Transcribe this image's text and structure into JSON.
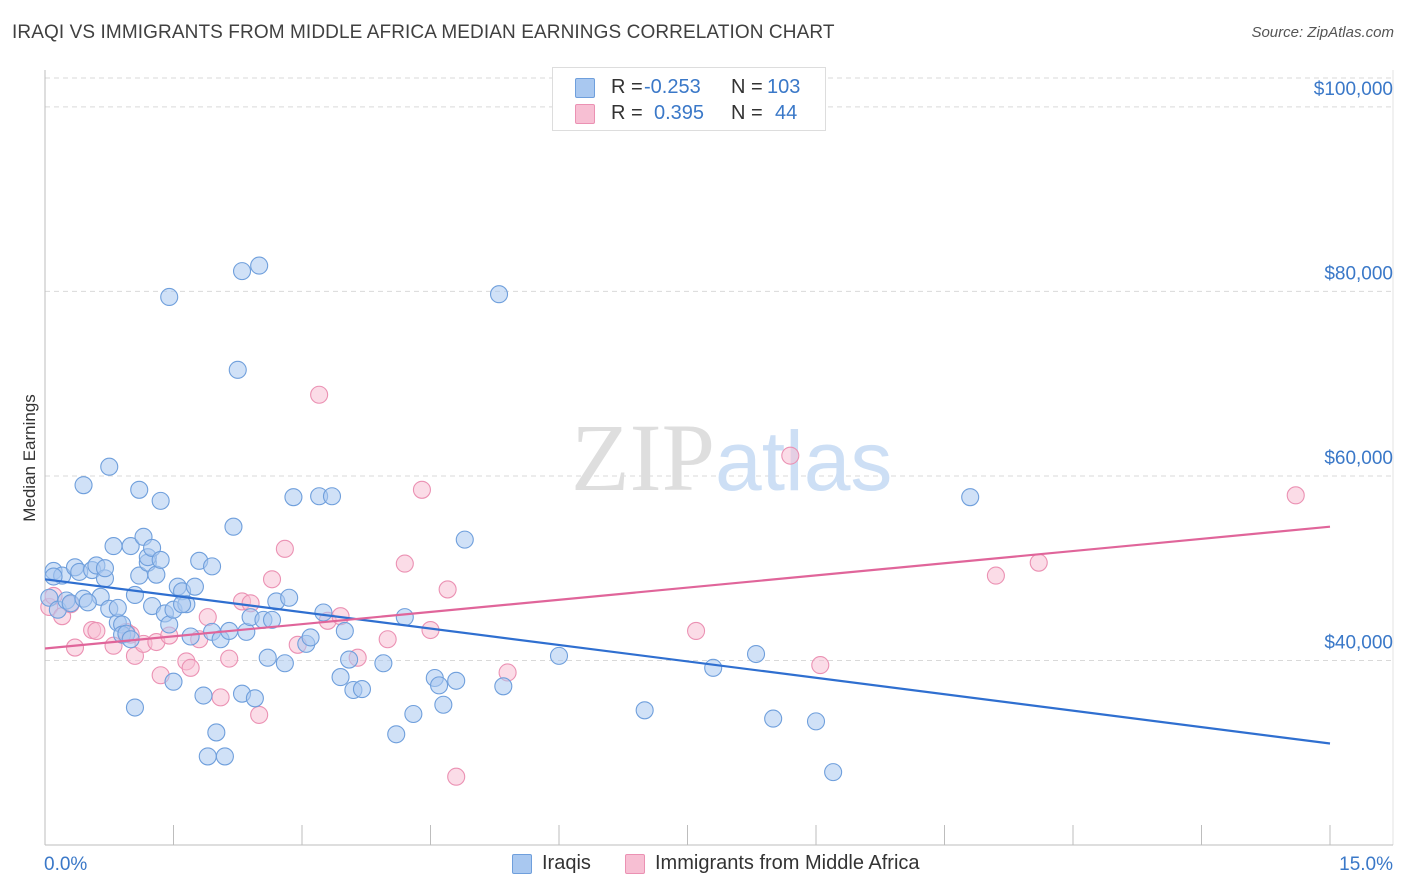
{
  "title": "IRAQI VS IMMIGRANTS FROM MIDDLE AFRICA MEDIAN EARNINGS CORRELATION CHART",
  "source": "Source: ZipAtlas.com",
  "watermark": {
    "zip": "ZIP",
    "atlas": "atlas"
  },
  "legend": {
    "series1": {
      "r_label": "R = ",
      "r_value": "-0.253",
      "n_label": "N = ",
      "n_value": "103"
    },
    "series2": {
      "r_label": "R = ",
      "r_value": "0.395",
      "n_label": "N = ",
      "n_value": "44"
    }
  },
  "bottom_legend": {
    "series1": "Iraqis",
    "series2": "Immigrants from Middle Africa"
  },
  "colors": {
    "blue_fill": "#a9c8f0",
    "blue_stroke": "#6f9fdc",
    "blue_line": "#2f6fd0",
    "pink_fill": "#f7bfd3",
    "pink_stroke": "#eb91b3",
    "pink_line": "#e0659a",
    "axis_text": "#3a78c8",
    "grid": "#d9d9d9"
  },
  "chart_data": {
    "type": "scatter",
    "title": "IRAQI VS IMMIGRANTS FROM MIDDLE AFRICA MEDIAN EARNINGS CORRELATION CHART",
    "xlabel": "",
    "ylabel": "Median Earnings",
    "xlim": [
      0,
      15
    ],
    "ylim": [
      20000,
      104000
    ],
    "x_tick_labels": [
      "0.0%",
      "15.0%"
    ],
    "y_ticks": [
      40000,
      60000,
      80000,
      100000
    ],
    "y_tick_labels": [
      "$40,000",
      "$60,000",
      "$80,000",
      "$100,000"
    ],
    "series": [
      {
        "name": "Iraqis",
        "color": "blue",
        "trend": {
          "x": [
            0,
            15
          ],
          "y": [
            48800,
            31000
          ]
        },
        "points": [
          [
            0.05,
            46800
          ],
          [
            0.1,
            49700
          ],
          [
            0.15,
            45500
          ],
          [
            0.2,
            49200
          ],
          [
            0.25,
            46500
          ],
          [
            0.3,
            46200
          ],
          [
            0.35,
            50100
          ],
          [
            0.4,
            49600
          ],
          [
            0.45,
            46700
          ],
          [
            0.45,
            59000
          ],
          [
            0.55,
            49800
          ],
          [
            0.6,
            50300
          ],
          [
            0.65,
            46900
          ],
          [
            0.7,
            48900
          ],
          [
            0.7,
            50000
          ],
          [
            0.75,
            45600
          ],
          [
            0.75,
            61000
          ],
          [
            0.8,
            52400
          ],
          [
            0.85,
            44100
          ],
          [
            0.85,
            45700
          ],
          [
            0.9,
            43900
          ],
          [
            0.9,
            42800
          ],
          [
            0.95,
            42900
          ],
          [
            1.0,
            52400
          ],
          [
            1.0,
            42300
          ],
          [
            1.05,
            34900
          ],
          [
            1.05,
            47100
          ],
          [
            1.1,
            49200
          ],
          [
            1.1,
            58500
          ],
          [
            1.15,
            53400
          ],
          [
            1.2,
            50600
          ],
          [
            1.2,
            51200
          ],
          [
            1.25,
            52200
          ],
          [
            1.3,
            49300
          ],
          [
            1.35,
            50900
          ],
          [
            1.25,
            45900
          ],
          [
            1.35,
            57300
          ],
          [
            1.4,
            45100
          ],
          [
            1.45,
            79400
          ],
          [
            1.45,
            43900
          ],
          [
            1.5,
            45500
          ],
          [
            1.5,
            37700
          ],
          [
            1.55,
            48000
          ],
          [
            1.6,
            47500
          ],
          [
            1.65,
            46100
          ],
          [
            1.7,
            42600
          ],
          [
            1.75,
            48000
          ],
          [
            1.8,
            50800
          ],
          [
            1.85,
            36200
          ],
          [
            1.9,
            29600
          ],
          [
            1.95,
            43100
          ],
          [
            1.95,
            50200
          ],
          [
            2.0,
            32200
          ],
          [
            2.05,
            42300
          ],
          [
            2.1,
            29600
          ],
          [
            2.15,
            43200
          ],
          [
            2.2,
            54500
          ],
          [
            2.25,
            71500
          ],
          [
            2.3,
            36400
          ],
          [
            2.3,
            82200
          ],
          [
            2.35,
            43100
          ],
          [
            2.4,
            44700
          ],
          [
            2.45,
            35900
          ],
          [
            2.5,
            82800
          ],
          [
            2.55,
            44400
          ],
          [
            2.6,
            40300
          ],
          [
            2.65,
            44400
          ],
          [
            2.7,
            46400
          ],
          [
            2.8,
            39700
          ],
          [
            2.85,
            46800
          ],
          [
            2.9,
            57700
          ],
          [
            3.05,
            41800
          ],
          [
            3.1,
            42500
          ],
          [
            3.2,
            57800
          ],
          [
            3.25,
            45200
          ],
          [
            3.35,
            57800
          ],
          [
            3.45,
            38200
          ],
          [
            3.5,
            43200
          ],
          [
            3.55,
            40100
          ],
          [
            3.6,
            36800
          ],
          [
            3.7,
            36900
          ],
          [
            3.95,
            39700
          ],
          [
            4.1,
            32000
          ],
          [
            4.2,
            44700
          ],
          [
            4.3,
            34200
          ],
          [
            4.55,
            38100
          ],
          [
            4.6,
            37300
          ],
          [
            4.65,
            35200
          ],
          [
            4.8,
            37800
          ],
          [
            4.9,
            53100
          ],
          [
            5.3,
            79700
          ],
          [
            5.35,
            37200
          ],
          [
            6.0,
            40500
          ],
          [
            7.0,
            34600
          ],
          [
            7.8,
            39200
          ],
          [
            8.3,
            40700
          ],
          [
            8.5,
            33700
          ],
          [
            9.0,
            33400
          ],
          [
            9.2,
            27900
          ],
          [
            10.8,
            57700
          ],
          [
            0.1,
            49100
          ],
          [
            0.5,
            46300
          ],
          [
            1.6,
            46100
          ]
        ]
      },
      {
        "name": "Immigrants from Middle Africa",
        "color": "pink",
        "trend": {
          "x": [
            0,
            15
          ],
          "y": [
            41300,
            54500
          ]
        },
        "points": [
          [
            0.05,
            45800
          ],
          [
            0.1,
            47000
          ],
          [
            0.2,
            44800
          ],
          [
            0.35,
            41400
          ],
          [
            0.55,
            43300
          ],
          [
            0.6,
            43200
          ],
          [
            0.8,
            41600
          ],
          [
            0.95,
            43100
          ],
          [
            1.0,
            42800
          ],
          [
            1.05,
            40500
          ],
          [
            1.15,
            41800
          ],
          [
            1.3,
            42000
          ],
          [
            1.35,
            38400
          ],
          [
            1.45,
            42700
          ],
          [
            1.65,
            39900
          ],
          [
            1.7,
            39200
          ],
          [
            1.8,
            42300
          ],
          [
            1.9,
            44700
          ],
          [
            2.05,
            36000
          ],
          [
            2.15,
            40200
          ],
          [
            2.3,
            46400
          ],
          [
            2.4,
            46200
          ],
          [
            2.5,
            34100
          ],
          [
            2.65,
            48800
          ],
          [
            2.8,
            52100
          ],
          [
            2.95,
            41700
          ],
          [
            3.2,
            68800
          ],
          [
            3.3,
            44300
          ],
          [
            3.45,
            44800
          ],
          [
            3.65,
            40300
          ],
          [
            4.0,
            42300
          ],
          [
            4.2,
            50500
          ],
          [
            4.4,
            58500
          ],
          [
            4.5,
            43300
          ],
          [
            4.7,
            47700
          ],
          [
            4.8,
            27400
          ],
          [
            5.4,
            38700
          ],
          [
            7.6,
            43200
          ],
          [
            8.7,
            62200
          ],
          [
            9.05,
            39500
          ],
          [
            11.1,
            49200
          ],
          [
            11.6,
            50600
          ],
          [
            14.6,
            57900
          ],
          [
            0.3,
            46100
          ]
        ]
      }
    ]
  }
}
